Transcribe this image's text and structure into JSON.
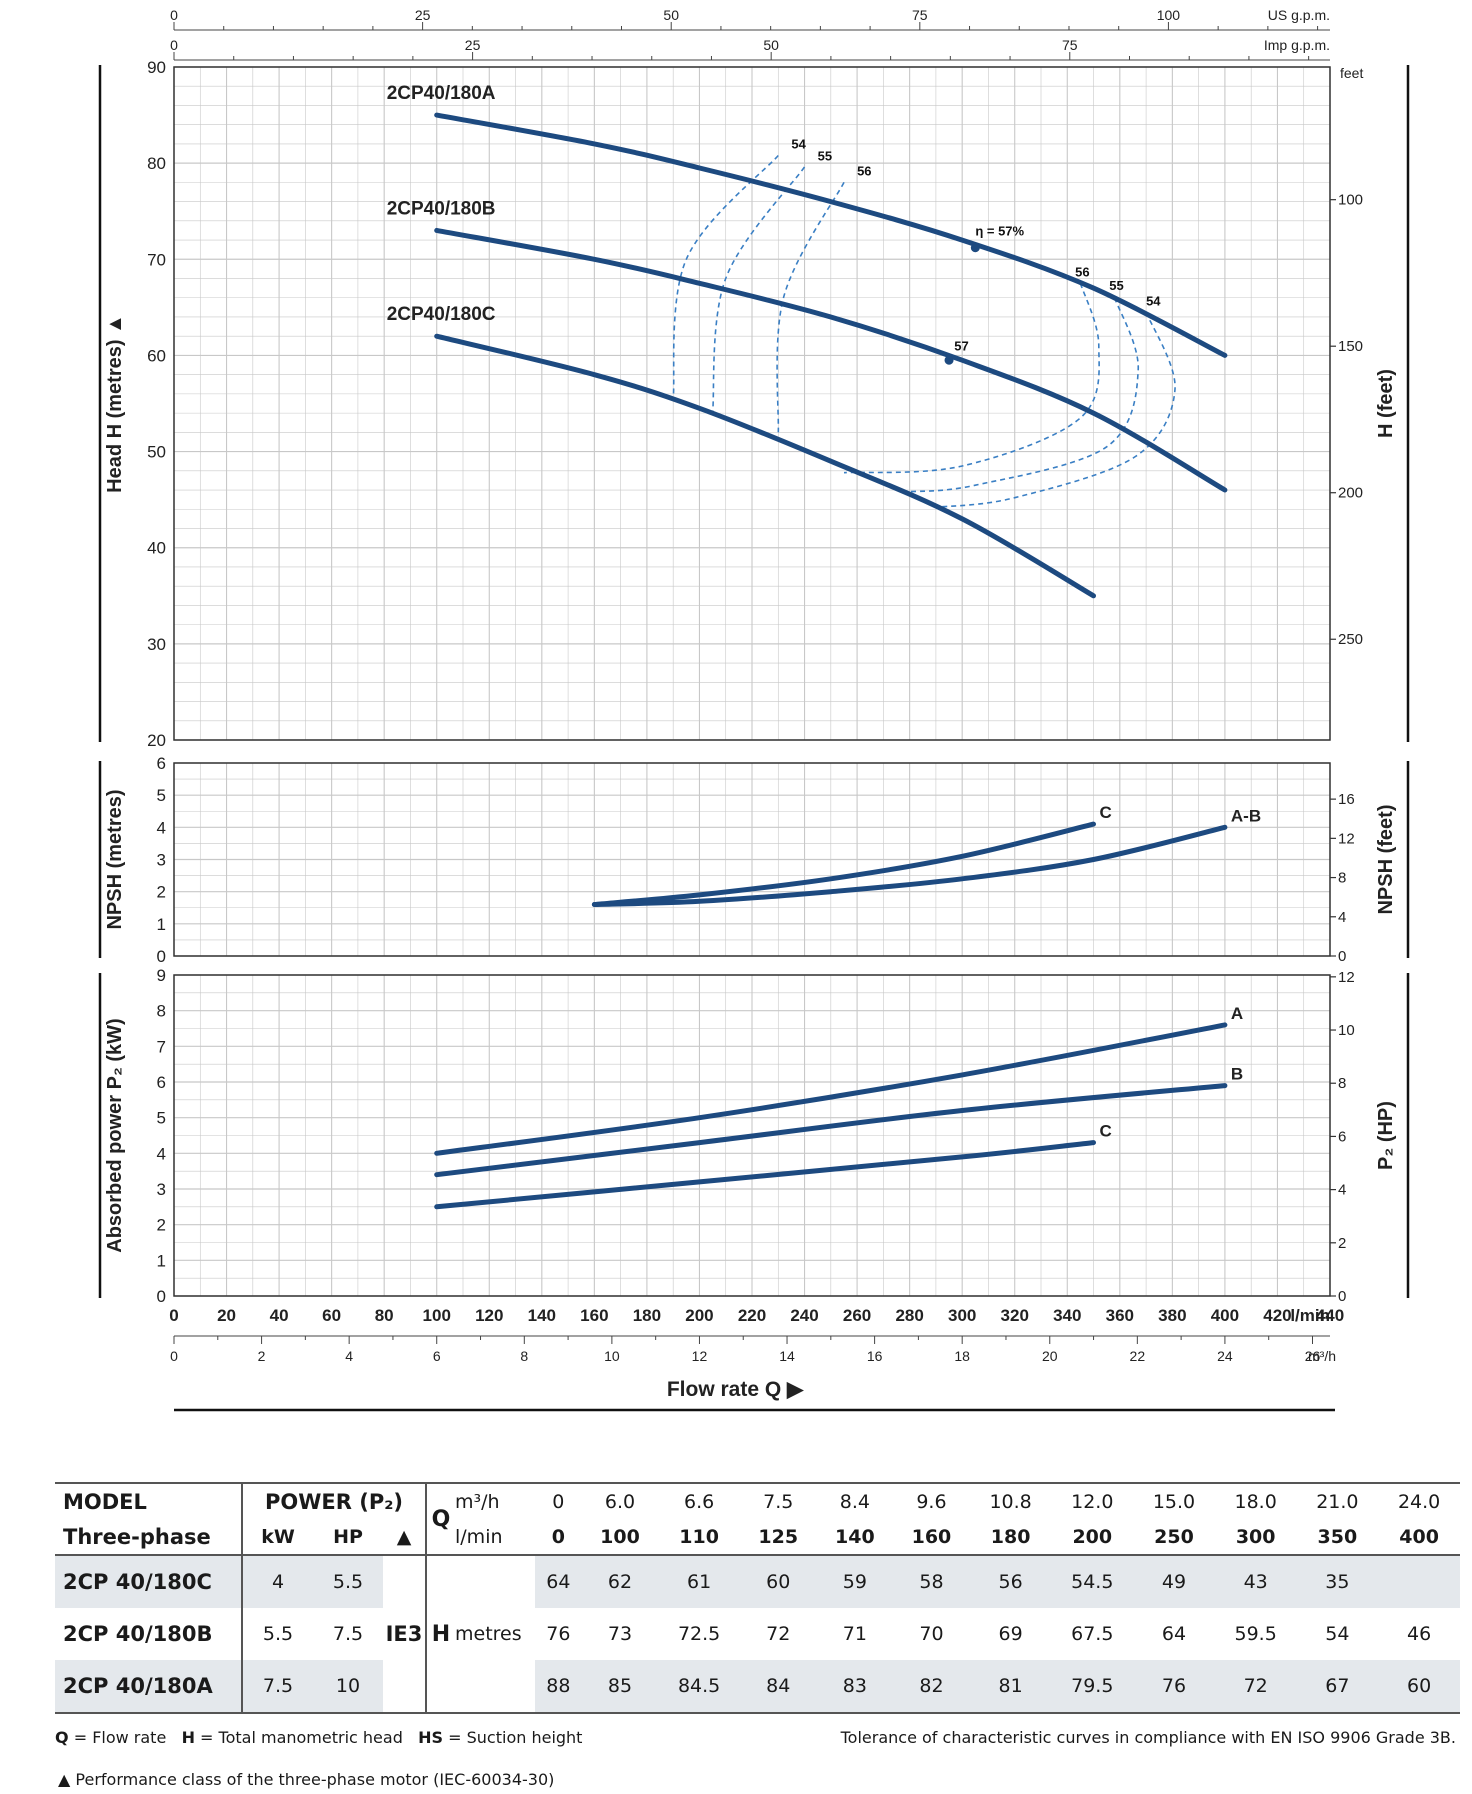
{
  "chart_data": [
    {
      "type": "line",
      "panel": "head",
      "ylabel": "Head H (metres) ▲",
      "ylabel_right": "H (feet)",
      "ylim": [
        20,
        90
      ],
      "yticks": [
        20,
        30,
        40,
        50,
        60,
        70,
        80,
        90
      ],
      "yticks_right": [
        "100",
        "150",
        "200",
        "250"
      ],
      "yunit_right": "feet",
      "xlim": [
        0,
        440
      ],
      "top_axis_us": {
        "unit": "US g.p.m.",
        "ticks": [
          "0",
          "25",
          "50",
          "75",
          "100"
        ]
      },
      "top_axis_imp": {
        "unit": "Imp g.p.m.",
        "ticks": [
          "0",
          "25",
          "50",
          "75"
        ]
      },
      "series": [
        {
          "name": "2CP40/180A",
          "x": [
            100,
            160,
            200,
            250,
            300,
            350,
            400
          ],
          "y": [
            85,
            82,
            79.5,
            76,
            72,
            67,
            60
          ]
        },
        {
          "name": "2CP40/180B",
          "x": [
            100,
            160,
            200,
            250,
            300,
            350,
            400
          ],
          "y": [
            73,
            70,
            67.5,
            64,
            59.5,
            54,
            46
          ]
        },
        {
          "name": "2CP40/180C",
          "x": [
            100,
            160,
            200,
            250,
            300,
            350
          ],
          "y": [
            62,
            58,
            54.5,
            49,
            43,
            35
          ]
        }
      ],
      "efficiency_labels": [
        "54",
        "55",
        "56",
        "η = 57%",
        "56",
        "55",
        "54",
        "57"
      ]
    },
    {
      "type": "line",
      "panel": "npsh",
      "ylabel": "NPSH (metres)",
      "ylabel_right": "NPSH (feet)",
      "ylim": [
        0,
        6
      ],
      "yticks": [
        0,
        1,
        2,
        3,
        4,
        5,
        6
      ],
      "yticks_right": [
        "0",
        "4",
        "8",
        "12",
        "16"
      ],
      "series": [
        {
          "name": "C",
          "x": [
            160,
            200,
            250,
            300,
            350
          ],
          "y": [
            1.6,
            1.9,
            2.4,
            3.1,
            4.1
          ]
        },
        {
          "name": "A-B",
          "x": [
            160,
            200,
            250,
            300,
            350,
            400
          ],
          "y": [
            1.6,
            1.7,
            2.0,
            2.4,
            3.0,
            4.0
          ]
        }
      ]
    },
    {
      "type": "line",
      "panel": "power",
      "ylabel": "Absorbed power P₂ (kW)",
      "ylabel_right": "P₂ (HP)",
      "ylim": [
        0,
        9
      ],
      "yticks": [
        0,
        1,
        2,
        3,
        4,
        5,
        6,
        7,
        8,
        9
      ],
      "yticks_right": [
        "0",
        "2",
        "4",
        "6",
        "8",
        "10",
        "12"
      ],
      "xlabel": "Flow rate Q ▶",
      "xticks_lmin": [
        "0",
        "20",
        "40",
        "60",
        "80",
        "100",
        "120",
        "140",
        "160",
        "180",
        "200",
        "220",
        "240",
        "260",
        "280",
        "300",
        "320",
        "340",
        "360",
        "380",
        "400",
        "420",
        "440"
      ],
      "xunit_lmin": "l/min",
      "xticks_m3h": [
        "0",
        "2",
        "4",
        "6",
        "8",
        "10",
        "12",
        "14",
        "16",
        "18",
        "20",
        "22",
        "24",
        "26"
      ],
      "xunit_m3h": "m³/h",
      "series": [
        {
          "name": "A",
          "x": [
            100,
            200,
            300,
            400
          ],
          "y": [
            4.0,
            5.0,
            6.2,
            7.6
          ]
        },
        {
          "name": "B",
          "x": [
            100,
            200,
            300,
            400
          ],
          "y": [
            3.4,
            4.3,
            5.2,
            5.9
          ]
        },
        {
          "name": "C",
          "x": [
            100,
            200,
            300,
            350
          ],
          "y": [
            2.5,
            3.2,
            3.9,
            4.3
          ]
        }
      ]
    }
  ],
  "table": {
    "model_header": "MODEL",
    "model_sub": "Three-phase",
    "power_header": "POWER (P₂)",
    "kw_header": "kW",
    "hp_header": "HP",
    "class_header": "▲",
    "q_header": "Q",
    "q_unit_m3h": "m³/h",
    "q_unit_lmin": "l/min",
    "q_m3h": [
      "0",
      "6.0",
      "6.6",
      "7.5",
      "8.4",
      "9.6",
      "10.8",
      "12.0",
      "15.0",
      "18.0",
      "21.0",
      "24.0"
    ],
    "q_lmin": [
      "0",
      "100",
      "110",
      "125",
      "140",
      "160",
      "180",
      "200",
      "250",
      "300",
      "350",
      "400"
    ],
    "efficiency_class": "IE3",
    "h_label": "H",
    "h_unit": "metres",
    "rows": [
      {
        "model": "2CP 40/180C",
        "kw": "4",
        "hp": "5.5",
        "h": [
          "64",
          "62",
          "61",
          "60",
          "59",
          "58",
          "56",
          "54.5",
          "49",
          "43",
          "35",
          ""
        ]
      },
      {
        "model": "2CP 40/180B",
        "kw": "5.5",
        "hp": "7.5",
        "h": [
          "76",
          "73",
          "72.5",
          "72",
          "71",
          "70",
          "69",
          "67.5",
          "64",
          "59.5",
          "54",
          "46"
        ]
      },
      {
        "model": "2CP 40/180A",
        "kw": "7.5",
        "hp": "10",
        "h": [
          "88",
          "85",
          "84.5",
          "84",
          "83",
          "82",
          "81",
          "79.5",
          "76",
          "72",
          "67",
          "60"
        ]
      }
    ]
  },
  "notes": {
    "legend_q": "Q",
    "legend_q_text": " = Flow rate   ",
    "legend_h": "H",
    "legend_h_text": " = Total manometric head   ",
    "legend_hs": "HS",
    "legend_hs_text": " = Suction height",
    "tolerance": "Tolerance of characteristic curves in compliance with EN ISO 9906 Grade 3B.",
    "motor_class": "▲  Performance class of the three-phase motor (IEC-60034-30)"
  },
  "colors": {
    "curve": "#1d4a80",
    "efficiency": "#3a7fc4",
    "grid": "#c8c8c8",
    "table_band": "#e4e8ec"
  }
}
